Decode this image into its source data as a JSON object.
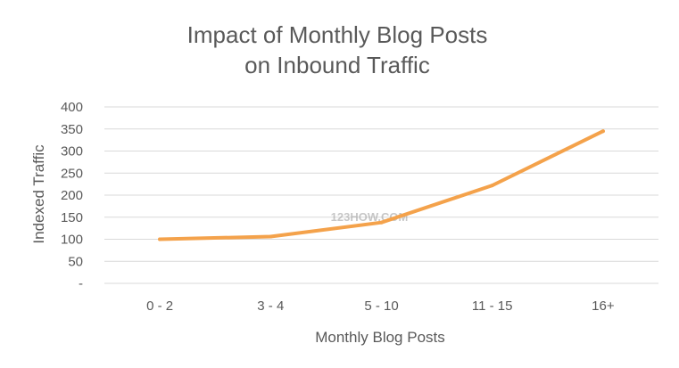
{
  "chart_data": {
    "type": "line",
    "title_lines": [
      "Impact of Monthly Blog Posts",
      "on Inbound Traffic"
    ],
    "xlabel": "Monthly Blog Posts",
    "ylabel": "Indexed Traffic",
    "categories": [
      "0 - 2",
      "3 - 4",
      "5 - 10",
      "11 - 15",
      "16+"
    ],
    "series": [
      {
        "values": [
          100,
          106,
          138,
          222,
          345
        ],
        "color": "#F4A24B"
      }
    ],
    "ylim": [
      0,
      400
    ],
    "yticks": [
      0,
      50,
      100,
      150,
      200,
      250,
      300,
      350,
      400
    ],
    "ytick_labels": [
      "-",
      "50",
      "100",
      "150",
      "200",
      "250",
      "300",
      "350",
      "400"
    ],
    "grid": true,
    "legend": "none"
  },
  "watermark": "123HOW.COM"
}
